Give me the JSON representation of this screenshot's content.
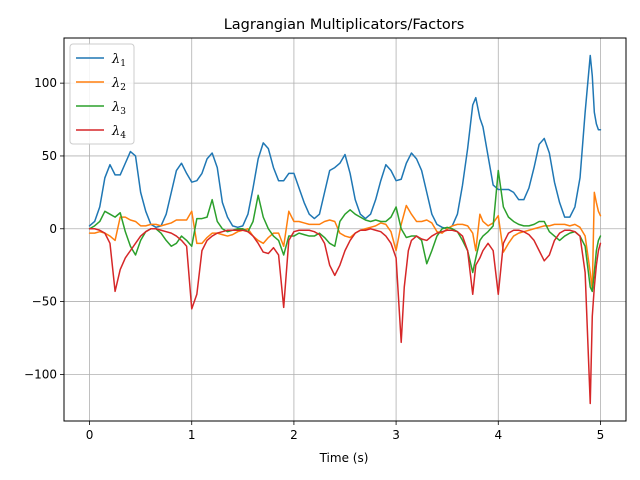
{
  "chart_data": {
    "type": "line",
    "title": "Lagrangian Multiplicators/Factors",
    "xlabel": "Time (s)",
    "ylabel": "",
    "xlim": [
      -0.25,
      5.25
    ],
    "ylim": [
      -132,
      131
    ],
    "xticks": [
      0,
      1,
      2,
      3,
      4,
      5
    ],
    "yticks": [
      -100,
      -50,
      0,
      50,
      100
    ],
    "grid": true,
    "legend_position": "top-left",
    "series": [
      {
        "name": "λ1",
        "base": "λ",
        "sub": "1",
        "color": "#1f77b4",
        "x": [
          0,
          0.05,
          0.1,
          0.15,
          0.2,
          0.25,
          0.3,
          0.35,
          0.4,
          0.45,
          0.5,
          0.55,
          0.6,
          0.65,
          0.7,
          0.75,
          0.8,
          0.85,
          0.9,
          0.95,
          1.0,
          1.05,
          1.1,
          1.15,
          1.2,
          1.25,
          1.3,
          1.35,
          1.4,
          1.45,
          1.5,
          1.55,
          1.6,
          1.65,
          1.7,
          1.75,
          1.8,
          1.85,
          1.9,
          1.95,
          2.0,
          2.05,
          2.1,
          2.15,
          2.2,
          2.25,
          2.3,
          2.35,
          2.4,
          2.45,
          2.5,
          2.55,
          2.6,
          2.65,
          2.7,
          2.75,
          2.8,
          2.85,
          2.9,
          2.95,
          3.0,
          3.05,
          3.1,
          3.15,
          3.2,
          3.25,
          3.3,
          3.35,
          3.4,
          3.45,
          3.5,
          3.55,
          3.6,
          3.65,
          3.7,
          3.75,
          3.78,
          3.82,
          3.85,
          3.9,
          3.95,
          4.0,
          4.05,
          4.1,
          4.15,
          4.2,
          4.25,
          4.3,
          4.35,
          4.4,
          4.45,
          4.5,
          4.55,
          4.6,
          4.65,
          4.7,
          4.75,
          4.8,
          4.85,
          4.9,
          4.92,
          4.94,
          4.96,
          4.98,
          5.0
        ],
        "y": [
          2,
          5,
          15,
          35,
          44,
          37,
          37,
          45,
          53,
          50,
          25,
          12,
          3,
          1,
          2,
          10,
          25,
          40,
          45,
          38,
          32,
          33,
          38,
          48,
          52,
          42,
          18,
          8,
          2,
          1,
          2,
          10,
          28,
          48,
          59,
          55,
          42,
          33,
          33,
          38,
          38,
          28,
          18,
          10,
          7,
          10,
          25,
          40,
          42,
          45,
          51,
          38,
          20,
          10,
          7,
          10,
          20,
          33,
          44,
          40,
          33,
          34,
          45,
          52,
          48,
          40,
          25,
          10,
          3,
          1,
          0,
          2,
          10,
          30,
          55,
          85,
          90,
          76,
          70,
          50,
          30,
          27,
          27,
          27,
          25,
          20,
          20,
          28,
          42,
          58,
          62,
          52,
          32,
          18,
          8,
          8,
          15,
          35,
          80,
          119,
          105,
          80,
          72,
          68,
          68
        ]
      },
      {
        "name": "λ2",
        "base": "λ",
        "sub": "2",
        "color": "#ff7f0e",
        "x": [
          0,
          0.05,
          0.1,
          0.15,
          0.2,
          0.25,
          0.3,
          0.35,
          0.4,
          0.45,
          0.5,
          0.55,
          0.6,
          0.65,
          0.7,
          0.75,
          0.8,
          0.85,
          0.9,
          0.95,
          1.0,
          1.05,
          1.1,
          1.15,
          1.2,
          1.25,
          1.3,
          1.35,
          1.4,
          1.45,
          1.5,
          1.55,
          1.6,
          1.65,
          1.7,
          1.75,
          1.8,
          1.85,
          1.9,
          1.95,
          2.0,
          2.05,
          2.1,
          2.15,
          2.2,
          2.25,
          2.3,
          2.35,
          2.4,
          2.45,
          2.5,
          2.55,
          2.6,
          2.65,
          2.7,
          2.75,
          2.8,
          2.85,
          2.9,
          2.95,
          3.0,
          3.05,
          3.1,
          3.15,
          3.2,
          3.25,
          3.3,
          3.35,
          3.4,
          3.45,
          3.5,
          3.55,
          3.6,
          3.65,
          3.7,
          3.75,
          3.78,
          3.82,
          3.85,
          3.9,
          3.95,
          4.0,
          4.05,
          4.1,
          4.15,
          4.2,
          4.25,
          4.3,
          4.35,
          4.4,
          4.45,
          4.5,
          4.55,
          4.6,
          4.65,
          4.7,
          4.75,
          4.8,
          4.85,
          4.9,
          4.92,
          4.94,
          4.96,
          4.98,
          5.0
        ],
        "y": [
          -3,
          -3,
          -2,
          -3,
          -5,
          -8,
          8,
          8,
          6,
          5,
          2,
          2,
          3,
          3,
          2,
          3,
          4,
          6,
          6,
          6,
          12,
          -10,
          -10,
          -6,
          -3,
          -3,
          -4,
          -5,
          -4,
          -2,
          -1,
          0,
          -5,
          -8,
          -10,
          -6,
          -3,
          -3,
          -12,
          12,
          5,
          5,
          4,
          3,
          3,
          3,
          5,
          6,
          5,
          -3,
          -5,
          -6,
          -3,
          -1,
          0,
          1,
          2,
          4,
          3,
          -2,
          -15,
          3,
          16,
          10,
          5,
          5,
          6,
          4,
          -2,
          -3,
          0,
          2,
          3,
          3,
          2,
          -3,
          -15,
          10,
          5,
          2,
          4,
          9,
          -16,
          -10,
          -5,
          -3,
          -2,
          -1,
          0,
          1,
          2,
          2,
          3,
          3,
          3,
          2,
          3,
          1,
          -5,
          -30,
          -42,
          25,
          18,
          12,
          9
        ]
      },
      {
        "name": "λ3",
        "base": "λ",
        "sub": "3",
        "color": "#2ca02c",
        "x": [
          0,
          0.05,
          0.1,
          0.15,
          0.2,
          0.25,
          0.3,
          0.35,
          0.4,
          0.45,
          0.5,
          0.55,
          0.6,
          0.65,
          0.7,
          0.75,
          0.8,
          0.85,
          0.9,
          0.95,
          1.0,
          1.05,
          1.1,
          1.15,
          1.2,
          1.25,
          1.3,
          1.35,
          1.4,
          1.45,
          1.5,
          1.55,
          1.6,
          1.65,
          1.7,
          1.75,
          1.8,
          1.85,
          1.9,
          1.95,
          2.0,
          2.05,
          2.1,
          2.15,
          2.2,
          2.25,
          2.3,
          2.35,
          2.4,
          2.45,
          2.5,
          2.55,
          2.6,
          2.65,
          2.7,
          2.75,
          2.8,
          2.85,
          2.9,
          2.95,
          3.0,
          3.05,
          3.1,
          3.15,
          3.2,
          3.25,
          3.3,
          3.35,
          3.4,
          3.45,
          3.5,
          3.55,
          3.6,
          3.65,
          3.7,
          3.75,
          3.78,
          3.82,
          3.85,
          3.9,
          3.95,
          4.0,
          4.05,
          4.1,
          4.15,
          4.2,
          4.25,
          4.3,
          4.35,
          4.4,
          4.45,
          4.5,
          4.55,
          4.6,
          4.65,
          4.7,
          4.75,
          4.8,
          4.85,
          4.9,
          4.92,
          4.94,
          4.96,
          4.98,
          5.0
        ],
        "y": [
          0,
          2,
          5,
          12,
          10,
          8,
          11,
          -2,
          -12,
          -18,
          -8,
          -2,
          0,
          0,
          -3,
          -8,
          -12,
          -10,
          -5,
          -8,
          -12,
          7,
          7,
          8,
          20,
          5,
          0,
          -2,
          -1,
          0,
          0,
          -2,
          5,
          23,
          8,
          0,
          -5,
          -8,
          -18,
          -5,
          -5,
          -3,
          -4,
          -5,
          -5,
          -3,
          -6,
          -10,
          -12,
          5,
          10,
          13,
          10,
          8,
          6,
          5,
          6,
          5,
          5,
          8,
          15,
          0,
          -6,
          -5,
          -5,
          -8,
          -24,
          -15,
          -5,
          0,
          1,
          0,
          -2,
          -8,
          -15,
          -30,
          -20,
          -8,
          -5,
          -2,
          2,
          40,
          15,
          8,
          5,
          3,
          2,
          2,
          3,
          5,
          5,
          -2,
          -5,
          -8,
          -5,
          -3,
          -2,
          -5,
          -12,
          -40,
          -43,
          -30,
          -15,
          -8,
          -5
        ]
      },
      {
        "name": "λ4",
        "base": "λ",
        "sub": "4",
        "color": "#d62728",
        "x": [
          0,
          0.05,
          0.1,
          0.15,
          0.2,
          0.25,
          0.3,
          0.35,
          0.4,
          0.45,
          0.5,
          0.55,
          0.6,
          0.65,
          0.7,
          0.75,
          0.8,
          0.85,
          0.9,
          0.95,
          1.0,
          1.05,
          1.1,
          1.15,
          1.2,
          1.25,
          1.3,
          1.35,
          1.4,
          1.45,
          1.5,
          1.55,
          1.6,
          1.65,
          1.7,
          1.75,
          1.8,
          1.85,
          1.9,
          1.95,
          2.0,
          2.05,
          2.1,
          2.15,
          2.2,
          2.25,
          2.3,
          2.35,
          2.4,
          2.45,
          2.5,
          2.55,
          2.6,
          2.65,
          2.7,
          2.75,
          2.8,
          2.85,
          2.9,
          2.95,
          3.0,
          3.05,
          3.08,
          3.12,
          3.15,
          3.2,
          3.25,
          3.3,
          3.35,
          3.4,
          3.45,
          3.5,
          3.55,
          3.6,
          3.65,
          3.7,
          3.75,
          3.78,
          3.82,
          3.85,
          3.9,
          3.95,
          4.0,
          4.05,
          4.1,
          4.15,
          4.2,
          4.25,
          4.3,
          4.35,
          4.4,
          4.45,
          4.5,
          4.55,
          4.6,
          4.65,
          4.7,
          4.75,
          4.8,
          4.85,
          4.9,
          4.92,
          4.94,
          4.96,
          4.98,
          5.0
        ],
        "y": [
          0,
          0,
          -1,
          -3,
          -10,
          -43,
          -28,
          -20,
          -15,
          -10,
          -5,
          -2,
          0,
          0,
          -1,
          -2,
          -3,
          -5,
          -8,
          -12,
          -55,
          -45,
          -15,
          -8,
          -5,
          -3,
          -2,
          -1,
          -1,
          -1,
          -1,
          -2,
          -5,
          -10,
          -16,
          -17,
          -13,
          -18,
          -54,
          -8,
          -2,
          -1,
          -1,
          -1,
          -2,
          -4,
          -10,
          -25,
          -32,
          -25,
          -15,
          -8,
          -3,
          -1,
          -1,
          0,
          -1,
          -2,
          -5,
          -10,
          -20,
          -78,
          -40,
          -15,
          -8,
          -5,
          -7,
          -8,
          -5,
          -3,
          -2,
          -1,
          -1,
          -2,
          -5,
          -15,
          -45,
          -25,
          -20,
          -15,
          -10,
          -15,
          -45,
          -10,
          -3,
          -1,
          -1,
          -2,
          -4,
          -8,
          -15,
          -22,
          -18,
          -8,
          -3,
          -1,
          -1,
          -2,
          -5,
          -30,
          -120,
          -60,
          -40,
          -25,
          -15,
          -10
        ]
      }
    ]
  }
}
